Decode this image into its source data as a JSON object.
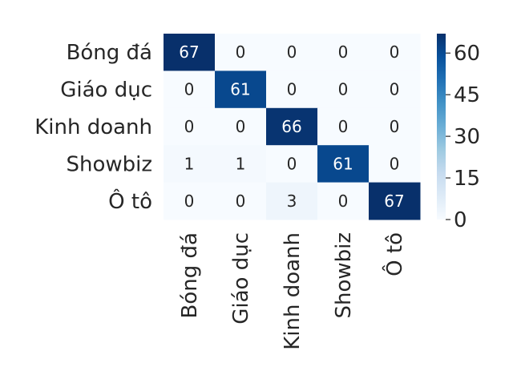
{
  "chart_data": {
    "type": "heatmap",
    "title": "",
    "xlabel": "",
    "ylabel": "",
    "rows": [
      "Bóng đá",
      "Giáo dục",
      "Kinh doanh",
      "Showbiz",
      "Ô tô"
    ],
    "columns": [
      "Bóng đá",
      "Giáo dục",
      "Kinh doanh",
      "Showbiz",
      "Ô tô"
    ],
    "values": [
      [
        67,
        0,
        0,
        0,
        0
      ],
      [
        0,
        61,
        0,
        0,
        0
      ],
      [
        0,
        0,
        66,
        0,
        0
      ],
      [
        1,
        1,
        0,
        61,
        0
      ],
      [
        0,
        0,
        3,
        0,
        67
      ]
    ],
    "colorbar": {
      "min": 0,
      "max": 67,
      "ticks": [
        "0",
        "15",
        "30",
        "45",
        "60"
      ],
      "colormap": "Blues",
      "color_low": "#f7fbff",
      "color_high": "#08306b"
    },
    "grid": false,
    "legend": "colorbar-right"
  }
}
